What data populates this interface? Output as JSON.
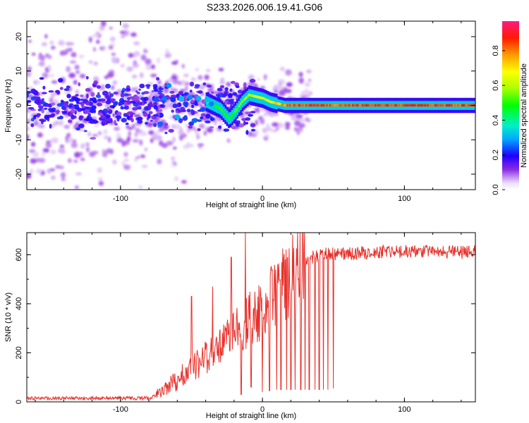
{
  "title": "S233.2026.006.19.41.G06",
  "chart_data": [
    {
      "type": "heatmap",
      "name": "spectrogram",
      "xlabel": "Height of straight line (km)",
      "ylabel": "Frequency (Hz)",
      "xlim": [
        -166,
        150
      ],
      "ylim": [
        -24.5,
        24.5
      ],
      "xticks": [
        -100,
        0,
        100
      ],
      "xtick_labels": [
        "-100",
        "0",
        "100"
      ],
      "yticks": [
        -20,
        -10,
        0,
        10,
        20
      ],
      "ytick_labels": [
        "-20",
        "-10",
        "0",
        "10",
        "20"
      ],
      "colorbar": {
        "label": "Normalized spectral amplitude",
        "range": [
          0,
          0.97
        ],
        "ticks": [
          0.0,
          0.2,
          0.4,
          0.6,
          0.8
        ],
        "tick_labels": [
          "0.0",
          "0.2",
          "0.4",
          "0.6",
          "0.8"
        ]
      },
      "ridge": {
        "x": [
          -166,
          -130,
          -100,
          -80,
          -60,
          -40,
          -30,
          -24,
          -20,
          -15,
          -10,
          -5,
          0,
          5,
          10,
          15,
          20,
          40,
          60,
          80,
          100,
          120,
          150
        ],
        "freq": [
          0,
          0,
          0,
          0,
          0,
          1,
          -1,
          -4,
          -2,
          1,
          3,
          2.5,
          2,
          1,
          0.5,
          0,
          0,
          0,
          0,
          0,
          0,
          0,
          0
        ],
        "amplitude": [
          0.35,
          0.35,
          0.3,
          0.25,
          0.35,
          0.4,
          0.55,
          0.5,
          0.55,
          0.6,
          0.65,
          0.7,
          0.7,
          0.75,
          0.8,
          0.85,
          0.9,
          0.9,
          0.92,
          0.92,
          0.93,
          0.93,
          0.9
        ]
      }
    },
    {
      "type": "line",
      "name": "snr",
      "xlabel": "Height of straight line (km)",
      "ylabel": "SNR (10 * v/v)",
      "xlim": [
        -166,
        150
      ],
      "ylim": [
        0,
        690
      ],
      "xticks": [
        -100,
        0,
        100
      ],
      "xtick_labels": [
        "-100",
        "0",
        "100"
      ],
      "yticks": [
        0,
        200,
        400,
        600
      ],
      "ytick_labels": [
        "0",
        "200",
        "400",
        "600"
      ],
      "color": "#e8312b",
      "trend": {
        "x": [
          -166,
          -120,
          -80,
          -70,
          -60,
          -50,
          -40,
          -30,
          -20,
          -10,
          0,
          10,
          20,
          30,
          40,
          60,
          80,
          100,
          120,
          150
        ],
        "y": [
          15,
          15,
          15,
          40,
          90,
          140,
          180,
          220,
          280,
          330,
          380,
          450,
          510,
          580,
          600,
          605,
          612,
          615,
          612,
          610
        ]
      },
      "spikes": [
        {
          "x": -50,
          "y": 430
        },
        {
          "x": -35,
          "y": 470
        },
        {
          "x": -22,
          "y": 590
        },
        {
          "x": -12,
          "y": 690
        }
      ],
      "dropouts": {
        "x": [
          -15,
          -8,
          0,
          5,
          10,
          13,
          17,
          20,
          23,
          27,
          30,
          33,
          37,
          40,
          43,
          46,
          50
        ],
        "y": [
          30,
          60,
          40,
          45,
          50,
          50,
          50,
          50,
          50,
          50,
          50,
          50,
          50,
          50,
          50,
          50,
          55
        ]
      }
    }
  ]
}
